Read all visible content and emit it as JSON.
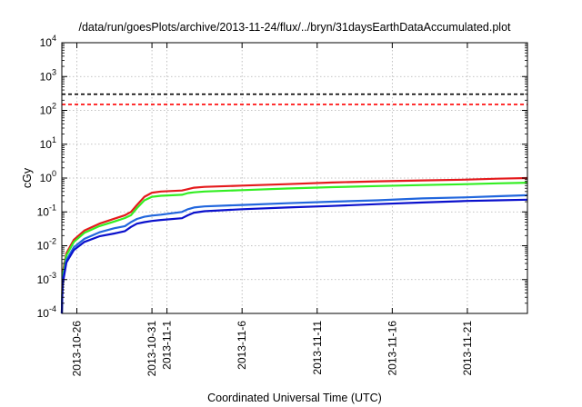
{
  "chart_data": {
    "type": "line",
    "title": "/data/run/goesPlots/archive/2013-11-24/flux/../bryn/31daysEarthDataAccumulated.plot",
    "xlabel": "Coordinated Universal Time (UTC)",
    "ylabel": "cGy",
    "yscale": "log",
    "ylim": [
      0.0001,
      10000
    ],
    "xlim": [
      0,
      31
    ],
    "grid": true,
    "y_ticks": [
      {
        "value": 0.0001,
        "base": "10",
        "exp": "-4"
      },
      {
        "value": 0.001,
        "base": "10",
        "exp": "-3"
      },
      {
        "value": 0.01,
        "base": "10",
        "exp": "-2"
      },
      {
        "value": 0.1,
        "base": "10",
        "exp": "-1"
      },
      {
        "value": 1,
        "base": "10",
        "exp": "0"
      },
      {
        "value": 10,
        "base": "10",
        "exp": "1"
      },
      {
        "value": 100,
        "base": "10",
        "exp": "2"
      },
      {
        "value": 1000,
        "base": "10",
        "exp": "3"
      },
      {
        "value": 10000,
        "base": "10",
        "exp": "4"
      }
    ],
    "x_ticks": [
      {
        "x": 1.0,
        "label": "2013-10-26"
      },
      {
        "x": 6.0,
        "label": "2013-10-31"
      },
      {
        "x": 7.0,
        "label": "2013-11-1"
      },
      {
        "x": 12.0,
        "label": "2013-11-6"
      },
      {
        "x": 17.0,
        "label": "2013-11-11"
      },
      {
        "x": 22.0,
        "label": "2013-11-16"
      },
      {
        "x": 27.0,
        "label": "2013-11-21"
      }
    ],
    "thresholds": [
      {
        "y": 300,
        "color": "#000000"
      },
      {
        "y": 150,
        "color": "#ff0000"
      }
    ],
    "series": [
      {
        "color": "#e41a1c",
        "x": [
          0,
          0.05,
          0.3,
          0.8,
          1.5,
          2.5,
          3.5,
          4.2,
          4.6,
          5.0,
          5.5,
          6.0,
          6.6,
          8.0,
          8.4,
          8.8,
          9.5,
          12,
          15,
          18,
          21,
          24,
          27,
          29,
          31
        ],
        "y": [
          0.0001,
          0.0015,
          0.006,
          0.015,
          0.028,
          0.045,
          0.063,
          0.08,
          0.1,
          0.16,
          0.28,
          0.37,
          0.4,
          0.43,
          0.47,
          0.52,
          0.55,
          0.6,
          0.66,
          0.74,
          0.8,
          0.85,
          0.9,
          0.96,
          1.0
        ]
      },
      {
        "color": "#33ee22",
        "x": [
          0,
          0.05,
          0.3,
          0.8,
          1.5,
          2.5,
          3.5,
          4.2,
          4.6,
          5.0,
          5.5,
          6.0,
          6.6,
          8.0,
          8.4,
          8.8,
          9.5,
          12,
          15,
          18,
          21,
          24,
          27,
          29,
          31
        ],
        "y": [
          0.0001,
          0.0012,
          0.0052,
          0.013,
          0.024,
          0.038,
          0.052,
          0.066,
          0.08,
          0.13,
          0.22,
          0.28,
          0.3,
          0.32,
          0.36,
          0.38,
          0.4,
          0.44,
          0.49,
          0.54,
          0.58,
          0.62,
          0.66,
          0.7,
          0.73
        ]
      },
      {
        "color": "#2166dd",
        "x": [
          0,
          0.05,
          0.3,
          0.8,
          1.5,
          2.5,
          3.5,
          4.2,
          4.6,
          5.0,
          5.5,
          6.0,
          6.6,
          8.0,
          8.4,
          8.8,
          9.5,
          12,
          15,
          18,
          21,
          24,
          27,
          29,
          31
        ],
        "y": [
          0.0001,
          0.0009,
          0.0038,
          0.009,
          0.016,
          0.025,
          0.033,
          0.038,
          0.05,
          0.062,
          0.072,
          0.078,
          0.083,
          0.1,
          0.12,
          0.135,
          0.145,
          0.16,
          0.18,
          0.2,
          0.22,
          0.25,
          0.27,
          0.29,
          0.31
        ]
      },
      {
        "color": "#0a10cc",
        "x": [
          0,
          0.05,
          0.3,
          0.8,
          1.5,
          2.5,
          3.5,
          4.2,
          4.6,
          5.0,
          5.5,
          6.0,
          6.6,
          8.0,
          8.4,
          8.8,
          9.5,
          12,
          15,
          18,
          21,
          24,
          27,
          29,
          31
        ],
        "y": [
          0.0001,
          0.0007,
          0.0032,
          0.0075,
          0.013,
          0.019,
          0.023,
          0.027,
          0.036,
          0.045,
          0.05,
          0.054,
          0.058,
          0.065,
          0.08,
          0.095,
          0.105,
          0.12,
          0.135,
          0.15,
          0.17,
          0.19,
          0.21,
          0.22,
          0.23
        ]
      }
    ]
  }
}
